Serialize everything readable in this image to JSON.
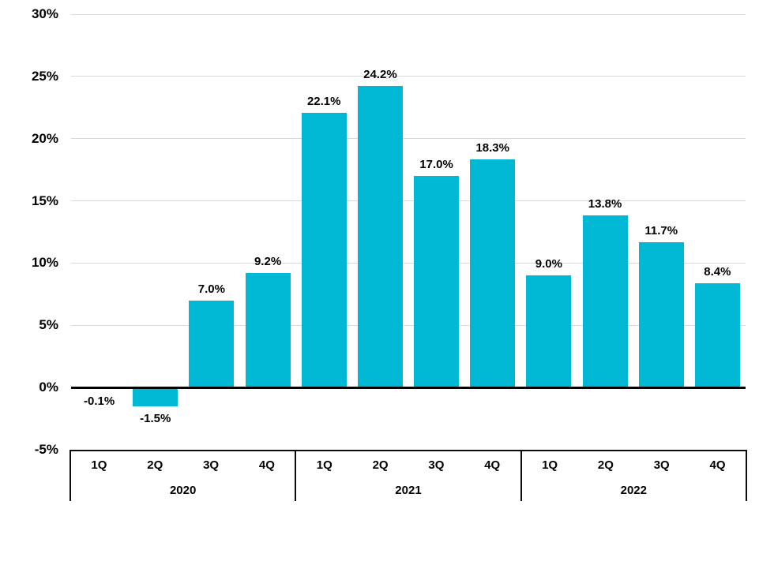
{
  "chart_data": {
    "type": "bar",
    "categories": [
      "1Q",
      "2Q",
      "3Q",
      "4Q",
      "1Q",
      "2Q",
      "3Q",
      "4Q",
      "1Q",
      "2Q",
      "3Q",
      "4Q"
    ],
    "values": [
      -0.1,
      -1.5,
      7.0,
      9.2,
      22.1,
      24.2,
      17.0,
      18.3,
      9.0,
      13.8,
      11.7,
      8.4
    ],
    "data_labels": [
      "-0.1%",
      "-1.5%",
      "7.0%",
      "9.2%",
      "22.1%",
      "24.2%",
      "17.0%",
      "18.3%",
      "9.0%",
      "13.8%",
      "11.7%",
      "8.4%"
    ],
    "year_groups": [
      {
        "label": "2020",
        "quarters": [
          "1Q",
          "2Q",
          "3Q",
          "4Q"
        ]
      },
      {
        "label": "2021",
        "quarters": [
          "1Q",
          "2Q",
          "3Q",
          "4Q"
        ]
      },
      {
        "label": "2022",
        "quarters": [
          "1Q",
          "2Q",
          "3Q",
          "4Q"
        ]
      }
    ],
    "y_axis": {
      "ticks": [
        "30%",
        "25%",
        "20%",
        "15%",
        "10%",
        "5%",
        "0%",
        "-5%"
      ],
      "max": 30,
      "min": -5,
      "step": 5,
      "unit": "%"
    },
    "ylim": [
      -5,
      30
    ],
    "grid": true,
    "legend": "none",
    "colors": {
      "bar": "#00B8D4",
      "gridline": "#D9D9D9",
      "axis": "#000000",
      "table_border": "#0c0c0c",
      "text": "#000000"
    }
  }
}
